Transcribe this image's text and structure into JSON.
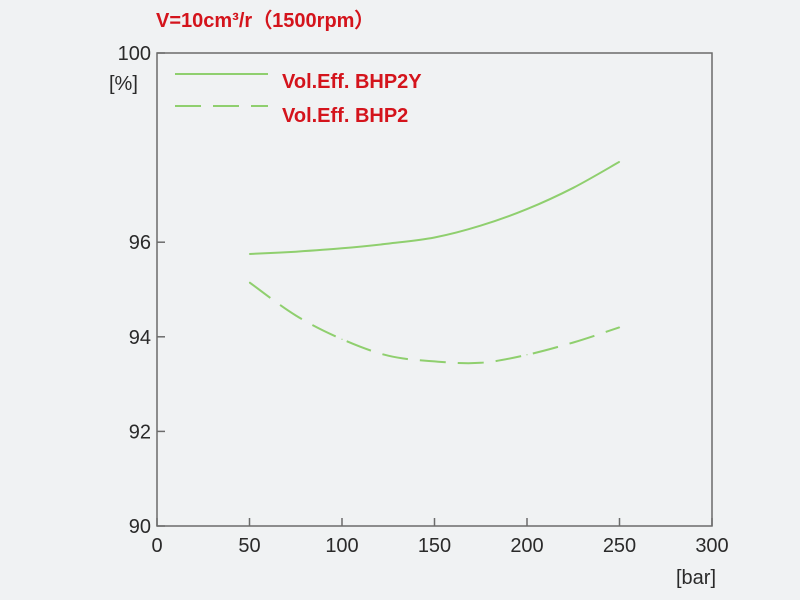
{
  "chart_data": {
    "type": "line",
    "title": "V=10cm³/r（1500rpm）",
    "ylabel": "[%]",
    "xlabel": "[bar]",
    "xlim": [
      0,
      300
    ],
    "ylim": [
      90,
      100
    ],
    "x_ticks": [
      "0",
      "50",
      "100",
      "150",
      "200",
      "250",
      "300"
    ],
    "y_ticks": [
      "90",
      "92",
      "94",
      "96",
      "100"
    ],
    "grid": false,
    "legend_position": "top-left",
    "series": [
      {
        "name": "Vol.Eff. BHP2Y",
        "style": "solid",
        "color": "#8fcf6e",
        "x": [
          50,
          75,
          100,
          125,
          150,
          175,
          200,
          225,
          250
        ],
        "y": [
          95.75,
          95.8,
          95.87,
          95.97,
          96.1,
          96.35,
          96.7,
          97.15,
          97.7
        ]
      },
      {
        "name": "Vol.Eff. BHP2",
        "style": "dashed",
        "color": "#8fcf6e",
        "x": [
          50,
          75,
          100,
          125,
          150,
          175,
          200,
          225,
          250
        ],
        "y": [
          95.15,
          94.45,
          93.95,
          93.6,
          93.48,
          93.45,
          93.62,
          93.88,
          94.2
        ]
      }
    ]
  }
}
